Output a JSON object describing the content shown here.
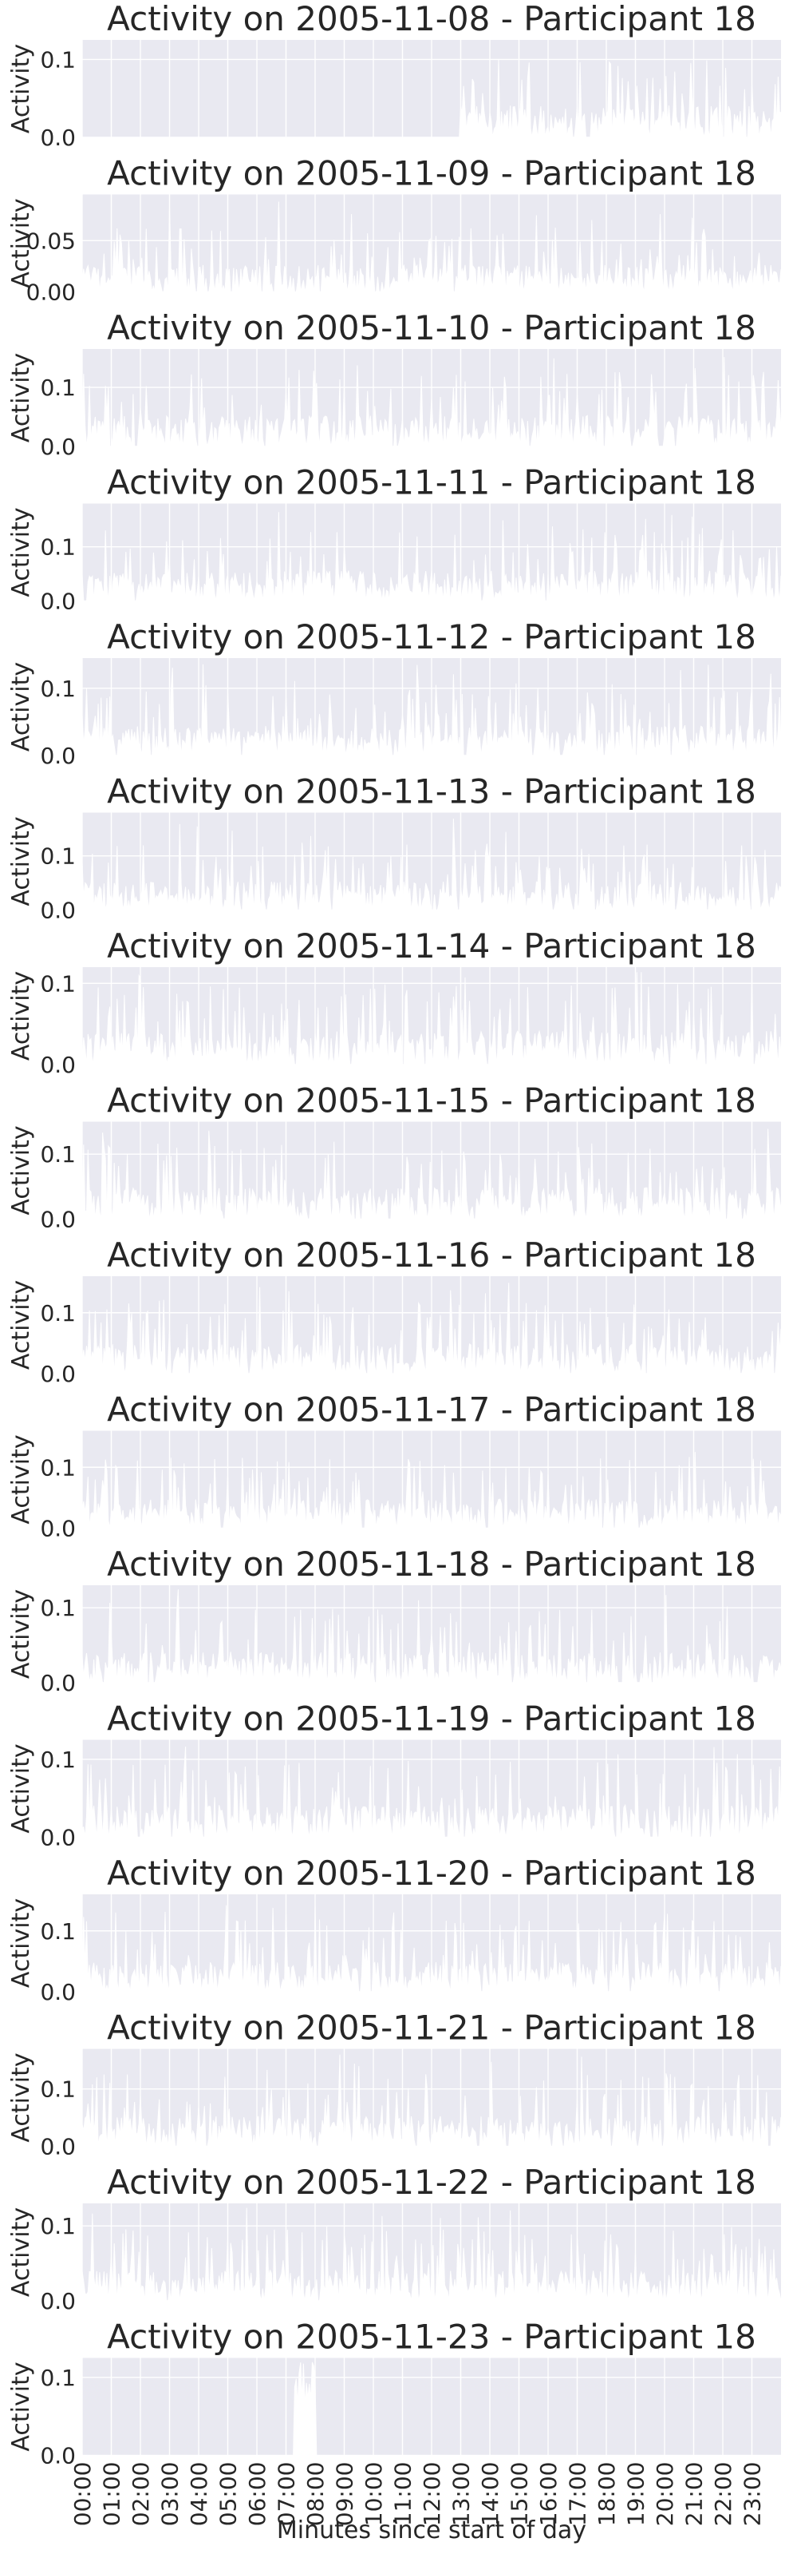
{
  "chart_data": [
    {
      "type": "area",
      "title": "Activity on 2005-11-08 - Participant 18",
      "ylabel": "Activity",
      "ylim": [
        0,
        0.125
      ],
      "yticks": [
        {
          "value": 0.0,
          "label": "0.0"
        },
        {
          "value": 0.1,
          "label": "0.1"
        }
      ],
      "active_from_hour": 13.0,
      "typical_peak": 0.055,
      "max_value": 0.12,
      "grid": true
    },
    {
      "type": "area",
      "title": "Activity on 2005-11-09 - Participant 18",
      "ylabel": "Activity",
      "ylim": [
        0,
        0.095
      ],
      "yticks": [
        {
          "value": 0.0,
          "label": "0.00"
        },
        {
          "value": 0.05,
          "label": "0.05"
        }
      ],
      "active_from_hour": 0,
      "typical_peak": 0.035,
      "max_value": 0.09,
      "grid": true
    },
    {
      "type": "area",
      "title": "Activity on 2005-11-10 - Participant 18",
      "ylabel": "Activity",
      "ylim": [
        0,
        0.165
      ],
      "yticks": [
        {
          "value": 0.0,
          "label": "0.0"
        },
        {
          "value": 0.1,
          "label": "0.1"
        }
      ],
      "active_from_hour": 0,
      "typical_peak": 0.07,
      "max_value": 0.16,
      "grid": true
    },
    {
      "type": "area",
      "title": "Activity on 2005-11-11 - Participant 18",
      "ylabel": "Activity",
      "ylim": [
        0,
        0.18
      ],
      "yticks": [
        {
          "value": 0.0,
          "label": "0.0"
        },
        {
          "value": 0.1,
          "label": "0.1"
        }
      ],
      "active_from_hour": 0,
      "typical_peak": 0.075,
      "max_value": 0.17,
      "grid": true
    },
    {
      "type": "area",
      "title": "Activity on 2005-11-12 - Participant 18",
      "ylabel": "Activity",
      "ylim": [
        0,
        0.145
      ],
      "yticks": [
        {
          "value": 0.0,
          "label": "0.0"
        },
        {
          "value": 0.1,
          "label": "0.1"
        }
      ],
      "active_from_hour": 0,
      "typical_peak": 0.06,
      "max_value": 0.14,
      "grid": true
    },
    {
      "type": "area",
      "title": "Activity on 2005-11-13 - Participant 18",
      "ylabel": "Activity",
      "ylim": [
        0,
        0.18
      ],
      "yticks": [
        {
          "value": 0.0,
          "label": "0.0"
        },
        {
          "value": 0.1,
          "label": "0.1"
        }
      ],
      "active_from_hour": 0,
      "typical_peak": 0.07,
      "max_value": 0.17,
      "grid": true
    },
    {
      "type": "area",
      "title": "Activity on 2005-11-14 - Participant 18",
      "ylabel": "Activity",
      "ylim": [
        0,
        0.12
      ],
      "yticks": [
        {
          "value": 0.0,
          "label": "0.0"
        },
        {
          "value": 0.1,
          "label": "0.1"
        }
      ],
      "active_from_hour": 0,
      "typical_peak": 0.055,
      "max_value": 0.115,
      "grid": true
    },
    {
      "type": "area",
      "title": "Activity on 2005-11-15 - Participant 18",
      "ylabel": "Activity",
      "ylim": [
        0,
        0.15
      ],
      "yticks": [
        {
          "value": 0.0,
          "label": "0.0"
        },
        {
          "value": 0.1,
          "label": "0.1"
        }
      ],
      "active_from_hour": 0,
      "typical_peak": 0.065,
      "max_value": 0.14,
      "grid": true
    },
    {
      "type": "area",
      "title": "Activity on 2005-11-16 - Participant 18",
      "ylabel": "Activity",
      "ylim": [
        0,
        0.16
      ],
      "yticks": [
        {
          "value": 0.0,
          "label": "0.0"
        },
        {
          "value": 0.1,
          "label": "0.1"
        }
      ],
      "active_from_hour": 0,
      "typical_peak": 0.065,
      "max_value": 0.15,
      "grid": true
    },
    {
      "type": "area",
      "title": "Activity on 2005-11-17 - Participant 18",
      "ylabel": "Activity",
      "ylim": [
        0,
        0.16
      ],
      "yticks": [
        {
          "value": 0.0,
          "label": "0.0"
        },
        {
          "value": 0.1,
          "label": "0.1"
        }
      ],
      "active_from_hour": 0,
      "typical_peak": 0.065,
      "max_value": 0.15,
      "grid": true
    },
    {
      "type": "area",
      "title": "Activity on 2005-11-18 - Participant 18",
      "ylabel": "Activity",
      "ylim": [
        0,
        0.13
      ],
      "yticks": [
        {
          "value": 0.0,
          "label": "0.0"
        },
        {
          "value": 0.1,
          "label": "0.1"
        }
      ],
      "active_from_hour": 0,
      "typical_peak": 0.055,
      "max_value": 0.125,
      "grid": true
    },
    {
      "type": "area",
      "title": "Activity on 2005-11-19 - Participant 18",
      "ylabel": "Activity",
      "ylim": [
        0,
        0.125
      ],
      "yticks": [
        {
          "value": 0.0,
          "label": "0.0"
        },
        {
          "value": 0.1,
          "label": "0.1"
        }
      ],
      "active_from_hour": 0,
      "typical_peak": 0.055,
      "max_value": 0.12,
      "grid": true
    },
    {
      "type": "area",
      "title": "Activity on 2005-11-20 - Participant 18",
      "ylabel": "Activity",
      "ylim": [
        0,
        0.16
      ],
      "yticks": [
        {
          "value": 0.0,
          "label": "0.0"
        },
        {
          "value": 0.1,
          "label": "0.1"
        }
      ],
      "active_from_hour": 0,
      "typical_peak": 0.065,
      "max_value": 0.15,
      "grid": true
    },
    {
      "type": "area",
      "title": "Activity on 2005-11-21 - Participant 18",
      "ylabel": "Activity",
      "ylim": [
        0,
        0.17
      ],
      "yticks": [
        {
          "value": 0.0,
          "label": "0.0"
        },
        {
          "value": 0.1,
          "label": "0.1"
        }
      ],
      "active_from_hour": 0,
      "typical_peak": 0.07,
      "max_value": 0.16,
      "grid": true
    },
    {
      "type": "area",
      "title": "Activity on 2005-11-22 - Participant 18",
      "ylabel": "Activity",
      "ylim": [
        0,
        0.13
      ],
      "yticks": [
        {
          "value": 0.0,
          "label": "0.0"
        },
        {
          "value": 0.1,
          "label": "0.1"
        }
      ],
      "active_from_hour": 0,
      "typical_peak": 0.055,
      "max_value": 0.125,
      "grid": true
    },
    {
      "type": "area",
      "title": "Activity on 2005-11-23 - Participant 18",
      "ylabel": "Activity",
      "ylim": [
        0,
        0.125
      ],
      "yticks": [
        {
          "value": 0.0,
          "label": "0.0"
        },
        {
          "value": 0.1,
          "label": "0.1"
        }
      ],
      "active_from_hour": 0,
      "active_to_hour": 8.0,
      "typical_peak": 0.0,
      "max_value": 0.12,
      "grid": true
    }
  ],
  "x_axis": {
    "label": "Minutes since start of day",
    "range_minutes": [
      0,
      1440
    ],
    "ticks": [
      "00:00",
      "01:00",
      "02:00",
      "03:00",
      "04:00",
      "05:00",
      "06:00",
      "07:00",
      "08:00",
      "09:00",
      "10:00",
      "11:00",
      "12:00",
      "13:00",
      "14:00",
      "15:00",
      "16:00",
      "17:00",
      "18:00",
      "19:00",
      "20:00",
      "21:00",
      "22:00",
      "23:00"
    ]
  },
  "colors": {
    "plot_background": "#e9e9f1",
    "grid": "#ffffff",
    "series_fill": "#ffffff",
    "text": "#262626"
  }
}
